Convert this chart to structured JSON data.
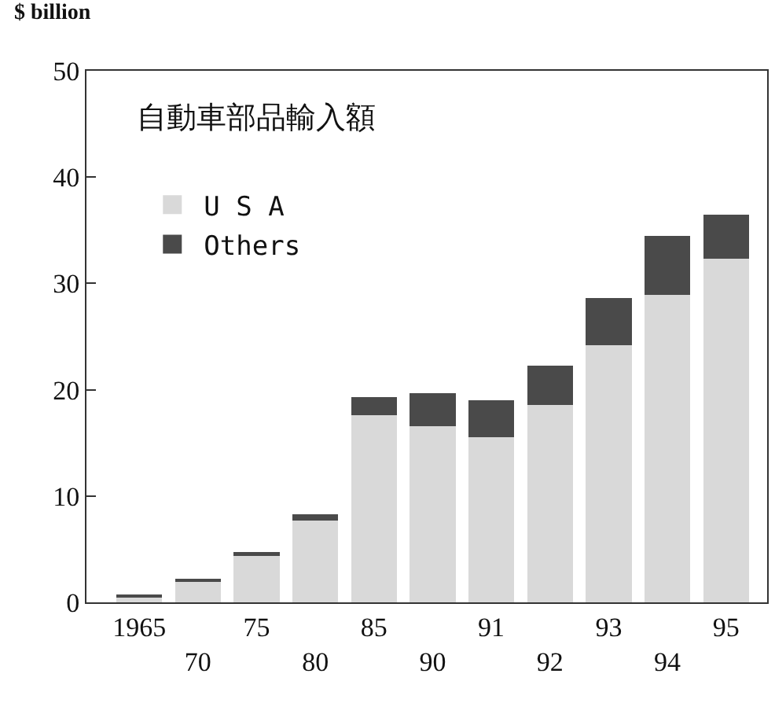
{
  "chart_data": {
    "type": "bar",
    "title": "自動車部品輸入額",
    "ylabel": "$ billion",
    "categories": [
      "1965",
      "70",
      "75",
      "80",
      "85",
      "90",
      "91",
      "92",
      "93",
      "94",
      "95"
    ],
    "stacked": true,
    "series": [
      {
        "name": "U S A",
        "color": "#d9d9d9",
        "values": [
          0.5,
          2.0,
          4.4,
          7.7,
          17.6,
          16.6,
          15.5,
          18.6,
          24.2,
          28.9,
          32.3
        ]
      },
      {
        "name": "Others",
        "color": "#4a4a4a",
        "values": [
          0.2,
          0.1,
          0.3,
          0.6,
          1.7,
          3.1,
          3.5,
          3.7,
          4.4,
          5.6,
          4.2
        ]
      }
    ],
    "ylim": [
      0,
      50
    ],
    "yticks": [
      0,
      10,
      20,
      30,
      40,
      50
    ],
    "legend": "top left"
  }
}
